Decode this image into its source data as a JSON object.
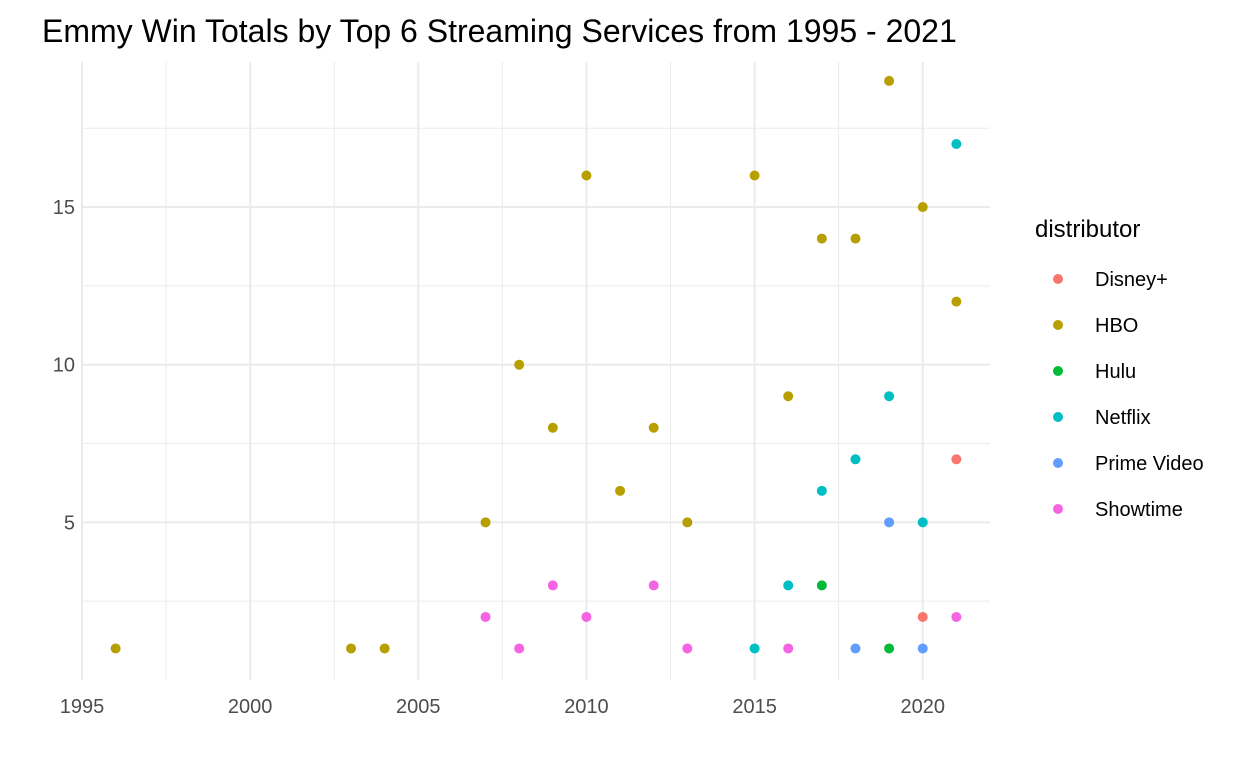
{
  "chart_data": {
    "type": "scatter",
    "title": "Emmy Win Totals by Top 6 Streaming Services from 1995 - 2021",
    "xlabel": "",
    "ylabel": "",
    "xlim": [
      1995,
      2022
    ],
    "ylim": [
      0,
      19.6
    ],
    "x_ticks": [
      1995,
      2000,
      2005,
      2010,
      2015,
      2020
    ],
    "y_ticks": [
      5,
      10,
      15
    ],
    "grid": true,
    "legend": {
      "title": "distributor",
      "position": "right"
    },
    "series": [
      {
        "name": "Disney+",
        "color": "#F8766D",
        "points": [
          [
            2020,
            2
          ],
          [
            2021,
            7
          ]
        ]
      },
      {
        "name": "HBO",
        "color": "#B79F00",
        "points": [
          [
            1996,
            1
          ],
          [
            2003,
            1
          ],
          [
            2004,
            1
          ],
          [
            2007,
            5
          ],
          [
            2008,
            10
          ],
          [
            2009,
            8
          ],
          [
            2010,
            16
          ],
          [
            2011,
            6
          ],
          [
            2012,
            8
          ],
          [
            2013,
            5
          ],
          [
            2015,
            16
          ],
          [
            2016,
            9
          ],
          [
            2017,
            14
          ],
          [
            2018,
            14
          ],
          [
            2019,
            19
          ],
          [
            2020,
            15
          ],
          [
            2021,
            12
          ]
        ]
      },
      {
        "name": "Hulu",
        "color": "#00BA38",
        "points": [
          [
            2017,
            3
          ],
          [
            2019,
            1
          ]
        ]
      },
      {
        "name": "Netflix",
        "color": "#00BFC4",
        "points": [
          [
            2015,
            1
          ],
          [
            2016,
            3
          ],
          [
            2017,
            6
          ],
          [
            2018,
            7
          ],
          [
            2019,
            9
          ],
          [
            2020,
            5
          ],
          [
            2021,
            17
          ]
        ]
      },
      {
        "name": "Prime Video",
        "color": "#619CFF",
        "points": [
          [
            2018,
            1
          ],
          [
            2019,
            5
          ],
          [
            2020,
            1
          ]
        ]
      },
      {
        "name": "Showtime",
        "color": "#F564E3",
        "points": [
          [
            2007,
            2
          ],
          [
            2008,
            1
          ],
          [
            2009,
            3
          ],
          [
            2010,
            2
          ],
          [
            2012,
            3
          ],
          [
            2013,
            1
          ],
          [
            2016,
            1
          ],
          [
            2021,
            2
          ]
        ]
      }
    ]
  }
}
